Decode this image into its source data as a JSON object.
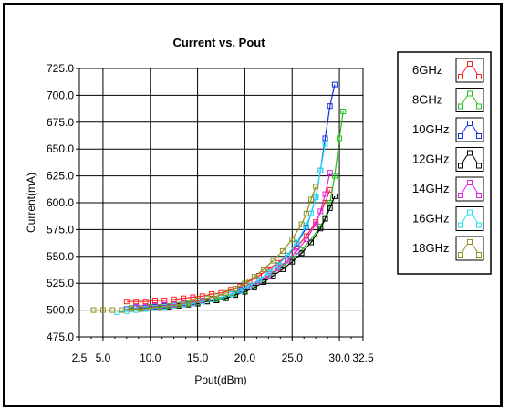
{
  "chart_data": {
    "type": "line",
    "title": "Current vs. Pout",
    "xlabel": "Pout(dBm)",
    "ylabel": "Current(mA)",
    "xlim": [
      2.5,
      32.5
    ],
    "ylim": [
      475.0,
      725.0
    ],
    "x_ticks": [
      "2.5",
      "5.0",
      "10.0",
      "15.0",
      "20.0",
      "25.0",
      "30.0",
      "32.5"
    ],
    "y_ticks": [
      "475.0",
      "500.0",
      "525.0",
      "550.0",
      "575.0",
      "600.0",
      "625.0",
      "650.0",
      "675.0",
      "700.0",
      "725.0"
    ],
    "grid": true,
    "legend_position": "right",
    "series": [
      {
        "name": "6GHz",
        "color": "#ff2020",
        "x": [
          7.5,
          8.5,
          9.5,
          10.5,
          11.5,
          12.5,
          13.5,
          14.5,
          15.5,
          16.5,
          17.5,
          18.5,
          19.5,
          20.5,
          21.5,
          22.5,
          23.5,
          24.5,
          25.5,
          26.5,
          27.5,
          28.5,
          29.0
        ],
        "y": [
          508,
          508,
          508,
          509,
          509,
          510,
          511,
          512,
          513,
          515,
          516,
          519,
          522,
          527,
          532,
          538,
          544,
          551,
          559,
          569,
          582,
          600,
          612
        ]
      },
      {
        "name": "8GHz",
        "color": "#20c020",
        "x": [
          8.0,
          9.0,
          10.0,
          11.0,
          12.0,
          13.0,
          14.0,
          15.0,
          16.0,
          17.0,
          18.0,
          19.0,
          20.0,
          21.0,
          22.0,
          23.0,
          24.0,
          25.0,
          26.0,
          27.0,
          28.0,
          28.5,
          29.0,
          29.5,
          30.0,
          30.4
        ],
        "y": [
          502,
          502,
          503,
          503,
          504,
          505,
          506,
          507,
          508,
          510,
          512,
          515,
          518,
          523,
          528,
          534,
          541,
          548,
          556,
          566,
          578,
          586,
          600,
          625,
          660,
          685
        ]
      },
      {
        "name": "10GHz",
        "color": "#1030e0",
        "x": [
          7.5,
          8.5,
          9.5,
          10.5,
          11.5,
          12.5,
          13.5,
          14.5,
          15.5,
          16.5,
          17.5,
          18.5,
          19.5,
          20.5,
          21.5,
          22.5,
          23.5,
          24.5,
          25.5,
          26.5,
          27.0,
          27.5,
          28.0,
          28.5,
          29.0,
          29.5
        ],
        "y": [
          501,
          502,
          502,
          503,
          504,
          505,
          506,
          507,
          509,
          510,
          512,
          515,
          519,
          523,
          528,
          535,
          542,
          551,
          562,
          577,
          590,
          605,
          630,
          660,
          690,
          710
        ]
      },
      {
        "name": "12GHz",
        "color": "#000000",
        "x": [
          8.0,
          9.0,
          10.0,
          11.0,
          12.0,
          13.0,
          14.0,
          15.0,
          16.0,
          17.0,
          18.0,
          19.0,
          20.0,
          21.0,
          22.0,
          23.0,
          24.0,
          25.0,
          26.0,
          27.0,
          28.0,
          28.5,
          29.0,
          29.5
        ],
        "y": [
          501,
          501,
          502,
          502,
          503,
          504,
          505,
          506,
          508,
          509,
          511,
          514,
          517,
          521,
          526,
          532,
          538,
          545,
          553,
          563,
          576,
          585,
          595,
          606
        ]
      },
      {
        "name": "14GHz",
        "color": "#e020e0",
        "x": [
          8.5,
          9.5,
          10.5,
          11.5,
          12.5,
          13.5,
          14.5,
          15.5,
          16.5,
          17.5,
          18.5,
          19.5,
          20.5,
          21.5,
          22.5,
          23.5,
          24.5,
          25.5,
          26.5,
          27.5,
          28.0,
          28.5,
          29.0
        ],
        "y": [
          503,
          503,
          504,
          505,
          505,
          506,
          507,
          509,
          510,
          512,
          515,
          518,
          522,
          527,
          532,
          539,
          546,
          555,
          566,
          580,
          592,
          608,
          628
        ]
      },
      {
        "name": "16GHz",
        "color": "#20e0f0",
        "x": [
          6.5,
          7.5,
          8.5,
          9.5,
          10.5,
          11.5,
          12.5,
          13.5,
          14.5,
          15.5,
          16.5,
          17.5,
          18.5,
          19.5,
          20.5,
          21.5,
          22.5,
          23.5,
          24.5,
          25.5,
          26.5,
          27.0,
          27.5,
          28.0,
          28.5
        ],
        "y": [
          498,
          499,
          500,
          501,
          502,
          503,
          504,
          505,
          506,
          508,
          510,
          512,
          515,
          518,
          523,
          528,
          535,
          542,
          551,
          563,
          579,
          590,
          605,
          630,
          655
        ]
      },
      {
        "name": "18GHz",
        "color": "#909020",
        "x": [
          4.0,
          5.0,
          6.0,
          7.0,
          8.0,
          9.0,
          10.0,
          11.0,
          12.0,
          13.0,
          14.0,
          15.0,
          16.0,
          17.0,
          18.0,
          19.0,
          20.0,
          21.0,
          22.0,
          23.0,
          24.0,
          25.0,
          26.0,
          26.5,
          27.0,
          27.5
        ],
        "y": [
          500,
          500,
          500,
          500,
          501,
          501,
          502,
          503,
          504,
          505,
          507,
          509,
          511,
          513,
          516,
          520,
          525,
          531,
          538,
          546,
          555,
          566,
          580,
          590,
          603,
          615
        ]
      }
    ]
  }
}
